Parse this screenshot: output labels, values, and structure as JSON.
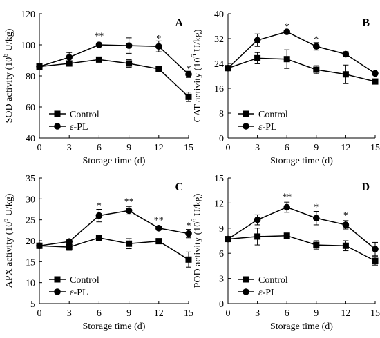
{
  "chart_data": [
    {
      "type": "line",
      "panel_letter": "A",
      "ylabel": "SOD activity (10",
      "ylabel_exp": "6",
      "ylabel_unit": " U/kg)",
      "xlabel": "Storage time (d)",
      "ylim": [
        40,
        120
      ],
      "yticks": [
        40,
        60,
        80,
        100,
        120
      ],
      "xlim": [
        0,
        15
      ],
      "xticks": [
        0,
        3,
        6,
        9,
        12,
        15
      ],
      "legend_position": "bottom-left",
      "series": [
        {
          "name": "Control",
          "marker": "square",
          "x": [
            0,
            3,
            6,
            9,
            12,
            15
          ],
          "values": [
            86,
            88,
            90.5,
            88,
            84.5,
            66.5
          ],
          "errors": [
            1.5,
            1.5,
            1.2,
            2.5,
            1,
            3
          ]
        },
        {
          "name": "ε-PL",
          "marker": "circle",
          "x": [
            0,
            3,
            6,
            9,
            12,
            15
          ],
          "values": [
            86,
            92,
            100,
            99.5,
            99,
            81
          ],
          "errors": [
            1.5,
            3,
            1,
            5,
            3.5,
            2
          ]
        }
      ],
      "annotations": [
        {
          "x": 6,
          "y": 106,
          "text": "**"
        },
        {
          "x": 12,
          "y": 104.5,
          "text": "*"
        },
        {
          "x": 15,
          "y": 85,
          "text": "*"
        }
      ]
    },
    {
      "type": "line",
      "panel_letter": "B",
      "ylabel": "CAT activity (10",
      "ylabel_exp": "6",
      "ylabel_unit": " U/kg)",
      "xlabel": "Storage time (d)",
      "ylim": [
        0,
        40
      ],
      "yticks": [
        0,
        8,
        16,
        24,
        32,
        40
      ],
      "xlim": [
        0,
        15
      ],
      "xticks": [
        0,
        3,
        6,
        9,
        12,
        15
      ],
      "legend_position": "bottom-left",
      "series": [
        {
          "name": "Control",
          "marker": "square",
          "x": [
            0,
            3,
            6,
            9,
            12,
            15
          ],
          "values": [
            22.5,
            25.7,
            25.4,
            22,
            20.5,
            18.2
          ],
          "errors": [
            0.8,
            1.8,
            3,
            1.3,
            3,
            0.5
          ]
        },
        {
          "name": "ε-PL",
          "marker": "circle",
          "x": [
            0,
            3,
            6,
            9,
            12,
            15
          ],
          "values": [
            22.5,
            31.5,
            34.2,
            29.5,
            27,
            20.8
          ],
          "errors": [
            0.8,
            2,
            0.5,
            1.2,
            0.8,
            0.4
          ]
        }
      ],
      "annotations": [
        {
          "x": 6,
          "y": 36,
          "text": "*"
        },
        {
          "x": 9,
          "y": 32,
          "text": "*"
        }
      ]
    },
    {
      "type": "line",
      "panel_letter": "C",
      "ylabel": "APX activity (10",
      "ylabel_exp": "6",
      "ylabel_unit": " U/kg)",
      "xlabel": "Storage time (d)",
      "ylim": [
        5,
        35
      ],
      "yticks": [
        5,
        10,
        15,
        20,
        25,
        30,
        35
      ],
      "xlim": [
        0,
        15
      ],
      "xticks": [
        0,
        3,
        6,
        9,
        12,
        15
      ],
      "legend_position": "bottom-left",
      "series": [
        {
          "name": "Control",
          "marker": "square",
          "x": [
            0,
            3,
            6,
            9,
            12,
            15
          ],
          "values": [
            18.8,
            18.5,
            20.7,
            19.3,
            19.9,
            15.5
          ],
          "errors": [
            0.6,
            0.8,
            0.4,
            1.2,
            0.5,
            1.8
          ]
        },
        {
          "name": "ε-PL",
          "marker": "circle",
          "x": [
            0,
            3,
            6,
            9,
            12,
            15
          ],
          "values": [
            18.8,
            19.8,
            26,
            27.2,
            23,
            21.7
          ],
          "errors": [
            0.6,
            0.5,
            1.5,
            1,
            0.4,
            1
          ]
        }
      ],
      "annotations": [
        {
          "x": 6,
          "y": 28.5,
          "text": "*"
        },
        {
          "x": 9,
          "y": 29.5,
          "text": "**"
        },
        {
          "x": 12,
          "y": 25,
          "text": "**"
        },
        {
          "x": 15,
          "y": 23.7,
          "text": "*"
        }
      ]
    },
    {
      "type": "line",
      "panel_letter": "D",
      "ylabel": "POD activity (10",
      "ylabel_exp": "6",
      "ylabel_unit": " U/kg)",
      "xlabel": "Storage time (d)",
      "ylim": [
        0,
        15
      ],
      "yticks": [
        0,
        3,
        6,
        9,
        12,
        15
      ],
      "xlim": [
        0,
        15
      ],
      "xticks": [
        0,
        3,
        6,
        9,
        12,
        15
      ],
      "legend_position": "bottom-left",
      "series": [
        {
          "name": "Control",
          "marker": "square",
          "x": [
            0,
            3,
            6,
            9,
            12,
            15
          ],
          "values": [
            7.7,
            8,
            8.1,
            7,
            6.9,
            5.1
          ],
          "errors": [
            0.2,
            1,
            0.2,
            0.5,
            0.6,
            0.5
          ]
        },
        {
          "name": "ε-PL",
          "marker": "circle",
          "x": [
            0,
            3,
            6,
            9,
            12,
            15
          ],
          "values": [
            7.7,
            10,
            11.5,
            10.2,
            9.4,
            6.5
          ],
          "errors": [
            0.2,
            0.6,
            0.6,
            0.8,
            0.5,
            0.8
          ]
        }
      ],
      "annotations": [
        {
          "x": 6,
          "y": 12.8,
          "text": "**"
        },
        {
          "x": 9,
          "y": 11.6,
          "text": "*"
        },
        {
          "x": 12,
          "y": 10.6,
          "text": "*"
        }
      ]
    }
  ]
}
